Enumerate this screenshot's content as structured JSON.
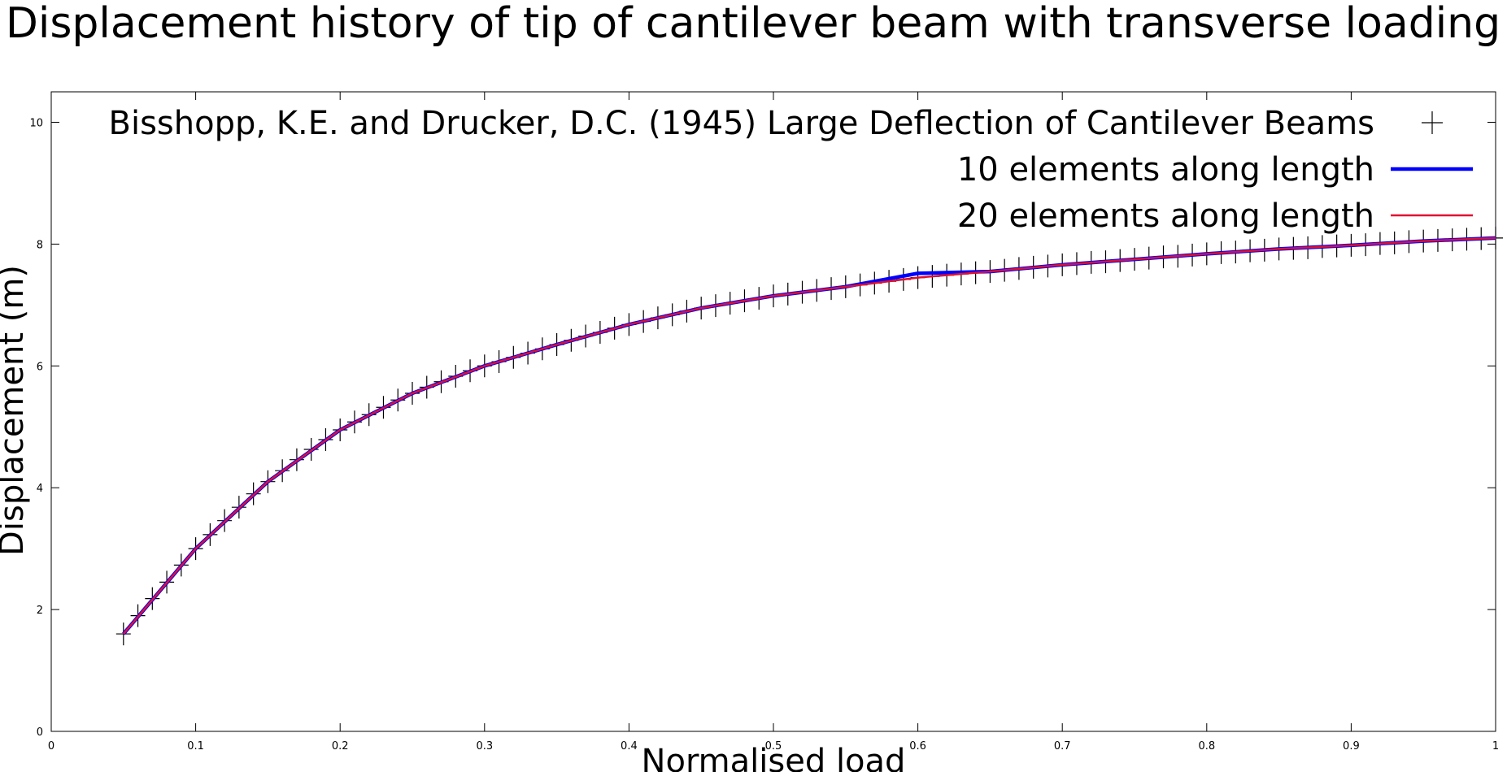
{
  "chart_data": {
    "type": "line",
    "title": "Displacement history of tip of cantilever beam with transverse loading",
    "xlabel": "Normalised load",
    "ylabel": "Displacement (m)",
    "xlim": [
      0,
      1
    ],
    "ylim": [
      0,
      10.5
    ],
    "xticks": [
      0,
      0.1,
      0.2,
      0.3,
      0.4,
      0.5,
      0.6,
      0.7,
      0.8,
      0.9,
      1
    ],
    "yticks": [
      0,
      2,
      4,
      6,
      8,
      10
    ],
    "grid": false,
    "legend": "top-right",
    "series": [
      {
        "name": "Bisshopp, K.E. and Drucker, D.C. (1945) Large Deflection of Cantilever Beams",
        "color": "#000000",
        "mode": "points",
        "x": [
          0.05,
          0.06,
          0.07,
          0.08,
          0.09,
          0.1,
          0.11,
          0.12,
          0.13,
          0.14,
          0.15,
          0.16,
          0.17,
          0.18,
          0.19,
          0.2,
          0.21,
          0.22,
          0.23,
          0.24,
          0.25,
          0.26,
          0.27,
          0.28,
          0.29,
          0.3,
          0.31,
          0.32,
          0.33,
          0.34,
          0.35,
          0.36,
          0.37,
          0.38,
          0.39,
          0.4,
          0.41,
          0.42,
          0.43,
          0.44,
          0.45,
          0.46,
          0.47,
          0.48,
          0.49,
          0.5,
          0.51,
          0.52,
          0.53,
          0.54,
          0.55,
          0.56,
          0.57,
          0.58,
          0.59,
          0.6,
          0.61,
          0.62,
          0.63,
          0.64,
          0.65,
          0.66,
          0.67,
          0.68,
          0.69,
          0.7,
          0.71,
          0.72,
          0.73,
          0.74,
          0.75,
          0.76,
          0.77,
          0.78,
          0.79,
          0.8,
          0.81,
          0.82,
          0.83,
          0.84,
          0.85,
          0.86,
          0.87,
          0.88,
          0.89,
          0.9,
          0.91,
          0.92,
          0.93,
          0.94,
          0.95,
          0.96,
          0.97,
          0.98,
          0.99,
          1
        ],
        "values": [
          1.6,
          1.9,
          2.18,
          2.45,
          2.73,
          3.0,
          3.23,
          3.46,
          3.68,
          3.9,
          4.1,
          4.28,
          4.46,
          4.63,
          4.79,
          4.95,
          5.08,
          5.2,
          5.32,
          5.44,
          5.55,
          5.65,
          5.74,
          5.83,
          5.92,
          6.0,
          6.07,
          6.14,
          6.21,
          6.28,
          6.35,
          6.42,
          6.49,
          6.55,
          6.62,
          6.68,
          6.73,
          6.79,
          6.84,
          6.9,
          6.95,
          6.99,
          7.03,
          7.07,
          7.11,
          7.15,
          7.18,
          7.21,
          7.24,
          7.27,
          7.3,
          7.33,
          7.36,
          7.39,
          7.42,
          7.45,
          7.47,
          7.49,
          7.51,
          7.53,
          7.55,
          7.57,
          7.6,
          7.62,
          7.64,
          7.66,
          7.68,
          7.7,
          7.71,
          7.73,
          7.75,
          7.77,
          7.79,
          7.8,
          7.82,
          7.84,
          7.86,
          7.87,
          7.89,
          7.9,
          7.92,
          7.93,
          7.94,
          7.96,
          7.97,
          7.98,
          7.99,
          8.01,
          8.02,
          8.04,
          8.05,
          8.06,
          8.07,
          8.08,
          8.09,
          8.1
        ]
      },
      {
        "name": "10 elements along length",
        "color": "#0000ff",
        "mode": "lines",
        "x": [
          0.05,
          0.1,
          0.15,
          0.2,
          0.25,
          0.3,
          0.35,
          0.4,
          0.45,
          0.5,
          0.55,
          0.6,
          0.65,
          0.7,
          0.75,
          0.8,
          0.85,
          0.9,
          0.95,
          1
        ],
        "values": [
          1.6,
          3.0,
          4.1,
          4.95,
          5.55,
          6.0,
          6.35,
          6.68,
          6.95,
          7.15,
          7.3,
          7.52,
          7.55,
          7.66,
          7.75,
          7.84,
          7.92,
          7.98,
          8.05,
          8.1
        ]
      },
      {
        "name": "20 elements along length",
        "color": "#e0102f",
        "mode": "lines",
        "x": [
          0.05,
          0.1,
          0.15,
          0.2,
          0.25,
          0.3,
          0.35,
          0.4,
          0.45,
          0.5,
          0.55,
          0.6,
          0.65,
          0.7,
          0.75,
          0.8,
          0.85,
          0.9,
          0.95,
          1
        ],
        "values": [
          1.6,
          3.0,
          4.1,
          4.95,
          5.55,
          6.0,
          6.35,
          6.68,
          6.95,
          7.15,
          7.3,
          7.45,
          7.55,
          7.66,
          7.75,
          7.84,
          7.92,
          7.98,
          8.05,
          8.1
        ]
      }
    ]
  }
}
